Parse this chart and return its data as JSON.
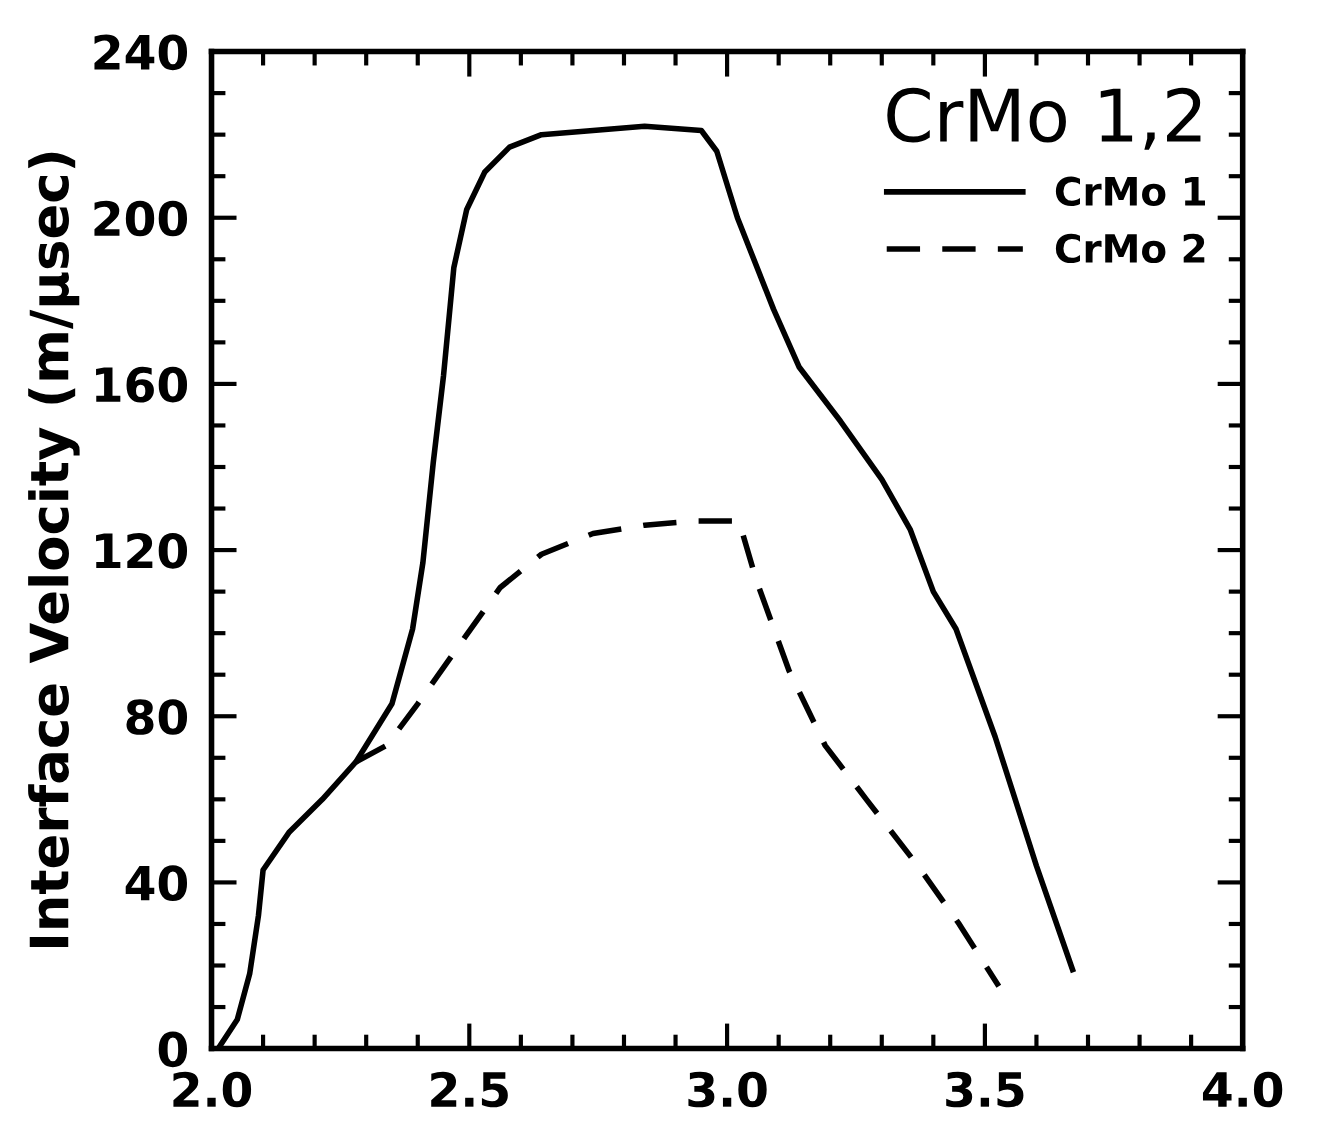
{
  "chart_data": {
    "type": "line",
    "ylabel": "Interface Velocity (m/μsec)",
    "legend_title": "CrMo 1,2",
    "legend": "top right",
    "grid": false,
    "marker": "none",
    "xlim": [
      2.0,
      4.0
    ],
    "ylim": [
      0,
      240
    ],
    "xticks": [
      {
        "value": 2,
        "label": "2.0"
      },
      {
        "value": 2.1,
        "label": null
      },
      {
        "value": 2.2,
        "label": null
      },
      {
        "value": 2.3,
        "label": null
      },
      {
        "value": 2.4,
        "label": null
      },
      2.5,
      {
        "value": 2.6,
        "label": null
      },
      {
        "value": 2.7,
        "label": null
      },
      {
        "value": 2.8,
        "label": null
      },
      {
        "value": 2.9,
        "label": null
      },
      {
        "value": 3,
        "label": "3.0"
      },
      {
        "value": 3.1,
        "label": null
      },
      {
        "value": 3.2,
        "label": null
      },
      {
        "value": 3.3,
        "label": null
      },
      {
        "value": 3.4,
        "label": null
      },
      3.5,
      {
        "value": 3.6,
        "label": null
      },
      {
        "value": 3.7,
        "label": null
      },
      {
        "value": 3.8,
        "label": null
      },
      {
        "value": 3.9,
        "label": null
      },
      {
        "value": 4,
        "label": "4.0"
      }
    ],
    "yticks": [
      0,
      {
        "value": 10,
        "label": null
      },
      {
        "value": 20,
        "label": null
      },
      {
        "value": 30,
        "label": null
      },
      40,
      {
        "value": 50,
        "label": null
      },
      {
        "value": 60,
        "label": null
      },
      {
        "value": 70,
        "label": null
      },
      80,
      {
        "value": 90,
        "label": null
      },
      {
        "value": 100,
        "label": null
      },
      {
        "value": 110,
        "label": null
      },
      120,
      {
        "value": 130,
        "label": null
      },
      {
        "value": 140,
        "label": null
      },
      {
        "value": 150,
        "label": null
      },
      160,
      {
        "value": 170,
        "label": null
      },
      {
        "value": 180,
        "label": null
      },
      {
        "value": 190,
        "label": null
      },
      200,
      {
        "value": 210,
        "label": null
      },
      {
        "value": 220,
        "label": null
      },
      {
        "value": 230,
        "label": null
      },
      240
    ],
    "series": [
      {
        "name": "CrMo 1",
        "color": "#000000",
        "line_style": "solid",
        "x": [
          2.013,
          2.05,
          2.074,
          2.091,
          2.1,
          2.15,
          2.215,
          2.28,
          2.35,
          2.39,
          2.41,
          2.43,
          2.45,
          2.47,
          2.495,
          2.53,
          2.578,
          2.64,
          2.74,
          2.84,
          2.95,
          2.98,
          3.02,
          3.09,
          3.14,
          3.22,
          3.3,
          3.355,
          3.4,
          3.444,
          3.52,
          3.6,
          3.67
        ],
        "values": [
          0,
          7,
          18,
          32,
          43,
          52,
          60,
          69,
          83,
          101,
          117,
          141,
          162,
          188,
          202,
          211,
          217,
          220,
          221,
          222,
          221,
          216,
          200,
          178,
          164,
          151,
          137,
          125,
          110,
          101,
          75,
          44,
          19
        ]
      },
      {
        "name": "CrMo 2",
        "color": "#000000",
        "line_style": "dashed",
        "x": [
          2.28,
          2.34,
          2.4,
          2.48,
          2.56,
          2.64,
          2.74,
          2.84,
          2.94,
          3.023,
          3.056,
          3.12,
          3.19,
          3.27,
          3.37,
          3.45,
          3.527
        ],
        "values": [
          69,
          73,
          83,
          97,
          111,
          119,
          124,
          126,
          127,
          127,
          113,
          91,
          73,
          60,
          44,
          30,
          15
        ]
      }
    ]
  }
}
